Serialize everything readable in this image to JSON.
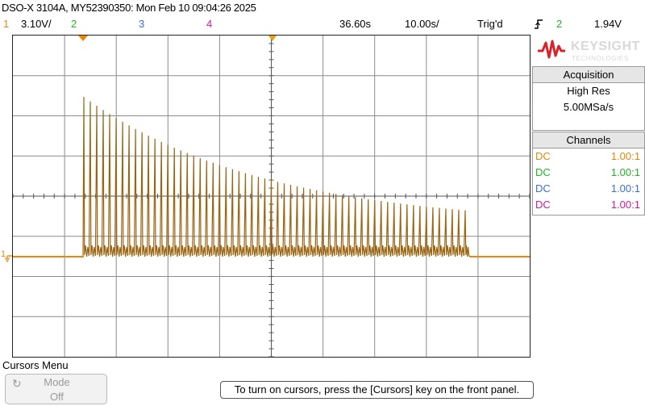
{
  "header": {
    "title": "DSO-X 3104A, MY52390350: Mon Feb 10 09:04:26 2025",
    "ch1_num": "1",
    "ch1_scale": "3.10V/",
    "ch2_num": "2",
    "ch3_num": "3",
    "ch4_num": "4",
    "time_delay": "36.60s",
    "time_scale": "10.00s/",
    "trigger_state": "Trig'd",
    "trigger_slope_icon": "rising-edge-icon",
    "trigger_source": "2",
    "trigger_level": "1.94V"
  },
  "colors": {
    "ch1": "#e8880a",
    "ch2": "#22b622",
    "ch3": "#3a6fd8",
    "ch4": "#d01aa0",
    "trace": "#9a6410",
    "logo_red": "#d8232a"
  },
  "logo": {
    "brand": "KEYSIGHT",
    "sub": "TECHNOLOGIES"
  },
  "acquisition": {
    "title": "Acquisition",
    "mode": "High Res",
    "rate": "5.00MSa/s"
  },
  "channels_panel": {
    "title": "Channels",
    "rows": [
      {
        "coupling": "DC",
        "ratio": "1.00:1"
      },
      {
        "coupling": "DC",
        "ratio": "1.00:1"
      },
      {
        "coupling": "DC",
        "ratio": "1.00:1"
      },
      {
        "coupling": "DC",
        "ratio": "1.00:1"
      }
    ]
  },
  "ground_marker": "1",
  "cursors_menu": {
    "title": "Cursors Menu",
    "mode_label": "Mode",
    "mode_value": "Off"
  },
  "status_message": "To turn on cursors, press the [Cursors] key on the front panel."
}
